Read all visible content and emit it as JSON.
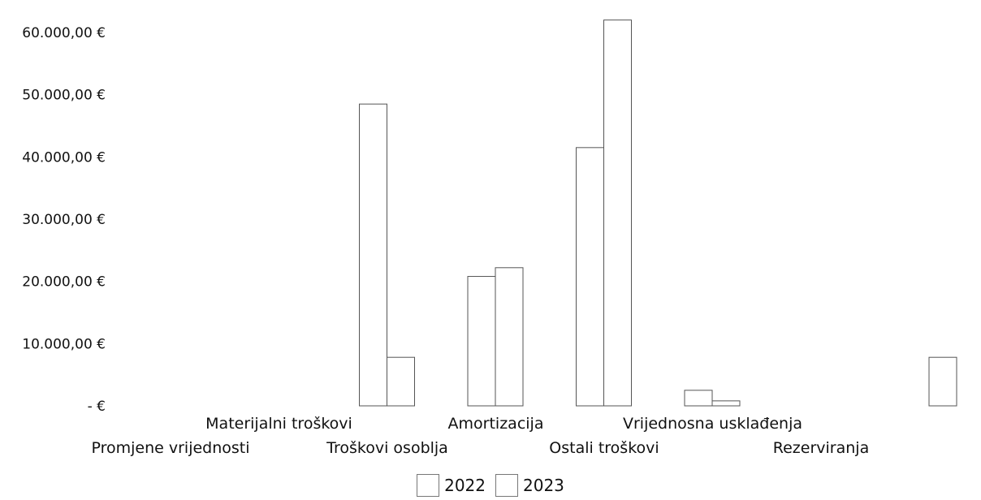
{
  "chart_data": {
    "type": "bar",
    "categories": [
      "Promjene vrijednosti",
      "Materijalni troškovi",
      "Troškovi osoblja",
      "Amortizacija",
      "Ostali troškovi",
      "Vrijednosna usklađenja",
      "Rezerviranja"
    ],
    "series": [
      {
        "name": "2022",
        "values": [
          0,
          48500,
          20800,
          41500,
          2500,
          0,
          0
        ]
      },
      {
        "name": "2023",
        "values": [
          0,
          7800,
          22200,
          62000,
          800,
          0,
          7800
        ]
      }
    ],
    "ylim": [
      0,
      60000
    ],
    "yticks": [
      "- €",
      "10.000,00 €",
      "20.000,00 €",
      "30.000,00 €",
      "40.000,00 €",
      "50.000,00 €",
      "60.000,00 €"
    ],
    "legend_position": "bottom",
    "grid": false,
    "colors": {
      "bar_fill": "#ffffff",
      "bar_stroke": "#555555",
      "text": "#111111"
    }
  }
}
